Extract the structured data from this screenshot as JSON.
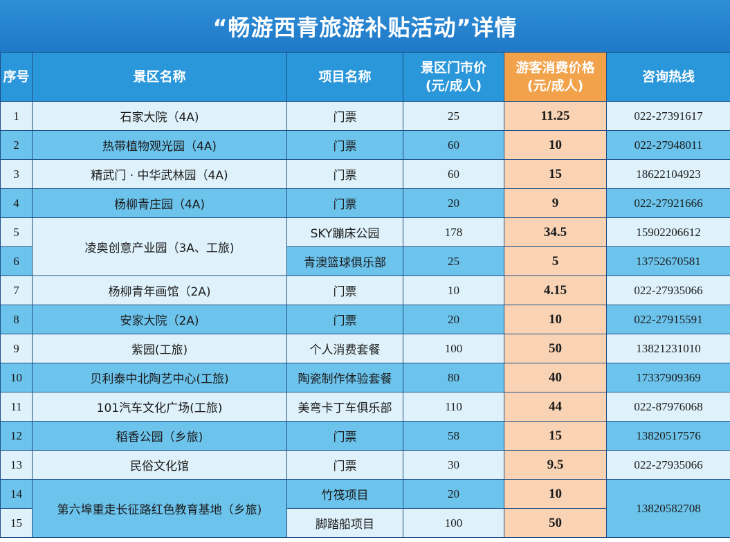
{
  "title": "“畅游西青旅游补贴活动”详情",
  "headers": {
    "no": "序号",
    "name": "景区名称",
    "project": "项目名称",
    "market_line1": "景区门市价",
    "market_line2": "(元/成人)",
    "consumer_line1": "游客消费价格",
    "consumer_line2": "(元/成人)",
    "hotline": "咨询热线"
  },
  "rows": [
    {
      "no": "1",
      "name": "石家大院（4A)",
      "project": "门票",
      "market": "25",
      "price": "11.25",
      "phone": "022-27391617"
    },
    {
      "no": "2",
      "name": "热带植物观光园（4A)",
      "project": "门票",
      "market": "60",
      "price": "10",
      "phone": "022-27948011"
    },
    {
      "no": "3",
      "name": "精武门 · 中华武林园（4A)",
      "project": "门票",
      "market": "60",
      "price": "15",
      "phone": "18622104923"
    },
    {
      "no": "4",
      "name": "杨柳青庄园（4A)",
      "project": "门票",
      "market": "20",
      "price": "9",
      "phone": "022-27921666"
    },
    {
      "no": "5",
      "name": "凌奥创意产业园（3A、工旅)",
      "project": "SKY蹦床公园",
      "market": "178",
      "price": "34.5",
      "phone": "15902206612"
    },
    {
      "no": "6",
      "name": "",
      "project": "青澳篮球俱乐部",
      "market": "25",
      "price": "5",
      "phone": "13752670581"
    },
    {
      "no": "7",
      "name": "杨柳青年画馆（2A)",
      "project": "门票",
      "market": "10",
      "price": "4.15",
      "phone": "022-27935066"
    },
    {
      "no": "8",
      "name": "安家大院（2A)",
      "project": "门票",
      "market": "20",
      "price": "10",
      "phone": "022-27915591"
    },
    {
      "no": "9",
      "name": "紫园(工旅)",
      "project": "个人消费套餐",
      "market": "100",
      "price": "50",
      "phone": "13821231010"
    },
    {
      "no": "10",
      "name": "贝利泰中北陶艺中心(工旅)",
      "project": "陶瓷制作体验套餐",
      "market": "80",
      "price": "40",
      "phone": "17337909369"
    },
    {
      "no": "11",
      "name": "101汽车文化广场(工旅)",
      "project": "美弯卡丁车俱乐部",
      "market": "110",
      "price": "44",
      "phone": "022-87976068"
    },
    {
      "no": "12",
      "name": "稻香公园（乡旅)",
      "project": "门票",
      "market": "58",
      "price": "15",
      "phone": "13820517576"
    },
    {
      "no": "13",
      "name": "民俗文化馆",
      "project": "门票",
      "market": "30",
      "price": "9.5",
      "phone": "022-27935066"
    },
    {
      "no": "14",
      "name": "第六埠重走长征路红色教育基地（乡旅)",
      "project": "竹筏项目",
      "market": "20",
      "price": "10",
      "phone": "13820582708"
    },
    {
      "no": "15",
      "name": "",
      "project": "脚踏船项目",
      "market": "100",
      "price": "50",
      "phone": ""
    }
  ],
  "colors": {
    "banner": "#1f79c8",
    "header": "#2a97db",
    "highlight_header": "#f2a24a",
    "price_cell": "#f9d3b4",
    "row_light": "#dff2fb",
    "row_dark": "#6cc3ec"
  }
}
